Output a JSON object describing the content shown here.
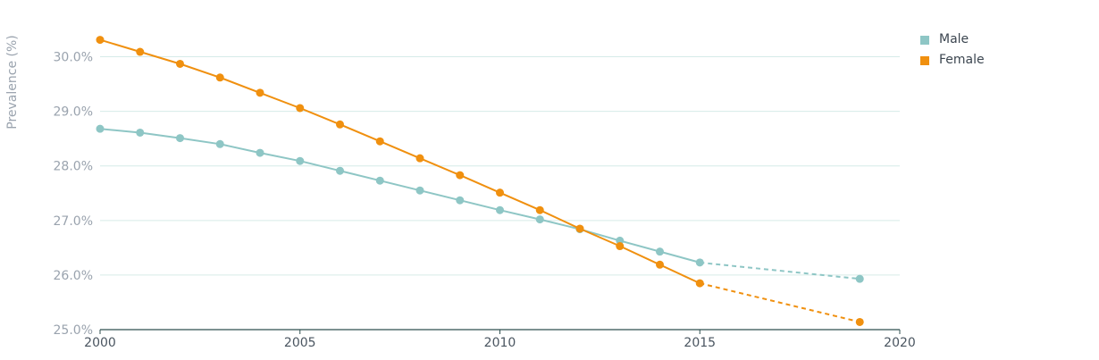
{
  "chart_data": {
    "type": "line",
    "title": "",
    "xlabel": "",
    "ylabel": "Prevalence (%)",
    "xlim": [
      2000,
      2020
    ],
    "ylim": [
      25.0,
      30.5
    ],
    "x_ticks": [
      "2000",
      "2005",
      "2010",
      "2015",
      "2020"
    ],
    "y_ticks": [
      "25.0%",
      "26.0%",
      "27.0%",
      "28.0%",
      "29.0%",
      "30.0%"
    ],
    "grid": true,
    "legend_position": "top-right",
    "series": [
      {
        "name": "Male",
        "color": "#8ec6c5",
        "points": [
          {
            "x": 2000,
            "y": 28.68
          },
          {
            "x": 2001,
            "y": 28.61
          },
          {
            "x": 2002,
            "y": 28.51
          },
          {
            "x": 2003,
            "y": 28.4
          },
          {
            "x": 2004,
            "y": 28.24
          },
          {
            "x": 2005,
            "y": 28.09
          },
          {
            "x": 2006,
            "y": 27.91
          },
          {
            "x": 2007,
            "y": 27.73
          },
          {
            "x": 2008,
            "y": 27.55
          },
          {
            "x": 2009,
            "y": 27.37
          },
          {
            "x": 2010,
            "y": 27.19
          },
          {
            "x": 2011,
            "y": 27.02
          },
          {
            "x": 2012,
            "y": 26.84
          },
          {
            "x": 2013,
            "y": 26.63
          },
          {
            "x": 2014,
            "y": 26.43
          },
          {
            "x": 2015,
            "y": 26.23
          }
        ],
        "projection": [
          {
            "x": 2015,
            "y": 26.23
          },
          {
            "x": 2019,
            "y": 25.93
          }
        ]
      },
      {
        "name": "Female",
        "color": "#f0900f",
        "points": [
          {
            "x": 2000,
            "y": 30.31
          },
          {
            "x": 2001,
            "y": 30.09
          },
          {
            "x": 2002,
            "y": 29.87
          },
          {
            "x": 2003,
            "y": 29.62
          },
          {
            "x": 2004,
            "y": 29.34
          },
          {
            "x": 2005,
            "y": 29.06
          },
          {
            "x": 2006,
            "y": 28.76
          },
          {
            "x": 2007,
            "y": 28.45
          },
          {
            "x": 2008,
            "y": 28.14
          },
          {
            "x": 2009,
            "y": 27.83
          },
          {
            "x": 2010,
            "y": 27.51
          },
          {
            "x": 2011,
            "y": 27.19
          },
          {
            "x": 2012,
            "y": 26.85
          },
          {
            "x": 2013,
            "y": 26.53
          },
          {
            "x": 2014,
            "y": 26.19
          },
          {
            "x": 2015,
            "y": 25.85
          }
        ],
        "projection": [
          {
            "x": 2015,
            "y": 25.85
          },
          {
            "x": 2019,
            "y": 25.14
          }
        ]
      }
    ]
  }
}
